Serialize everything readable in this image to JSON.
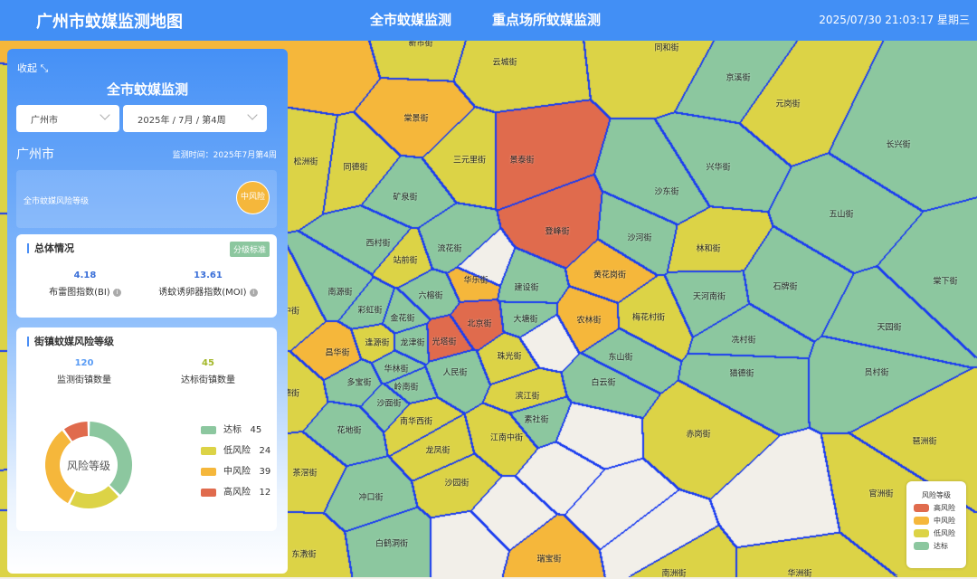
{
  "header": {
    "title": "广州市蚊媒监测地图",
    "nav": [
      "全市蚊媒监测",
      "重点场所蚊媒监测"
    ],
    "datetime": "2025/07/30 21:03:17 星期三"
  },
  "colors": {
    "达标": "#8cc79f",
    "低风险": "#dcd346",
    "中风险": "#f5b73b",
    "高风险": "#e06b4d",
    "base": "#f2efe9",
    "border": "#1b3df0",
    "header": "#428ff5"
  },
  "panel": {
    "collapse": "收起",
    "title": "全市蚊媒监测",
    "region_select": "广州市",
    "period_select": "2025年 / 7月 / 第4周",
    "city": "广州市",
    "monitor_time": "监测时间：2025年7月第4周",
    "city_risk_label": "全市蚊媒风险等级",
    "city_risk": "中风险",
    "overall": {
      "title": "总体情况",
      "standard_button": "分级标准",
      "bi_value": "4.18",
      "bi_label": "布雷图指数(BI)",
      "moi_value": "13.61",
      "moi_label": "诱蚊诱卵器指数(MOI)"
    },
    "streets": {
      "title": "街镇蚊媒风险等级",
      "monitored_value": "120",
      "monitored_label": "监测街镇数量",
      "ok_value": "45",
      "ok_label": "达标街镇数量",
      "donut_center": "风险等级",
      "levels": [
        {
          "name": "达标",
          "value": 45,
          "color": "#8cc79f"
        },
        {
          "name": "低风险",
          "value": 24,
          "color": "#dcd346"
        },
        {
          "name": "中风险",
          "value": 39,
          "color": "#f5b73b"
        },
        {
          "name": "高风险",
          "value": 12,
          "color": "#e06b4d"
        }
      ]
    }
  },
  "map_legend": {
    "title": "风险等级",
    "items": [
      "高风险",
      "中风险",
      "低风险",
      "达标"
    ]
  },
  "districts": [
    {
      "name": "新市街",
      "risk": "低风险"
    },
    {
      "name": "云城街",
      "risk": "低风险"
    },
    {
      "name": "同和街",
      "risk": "低风险"
    },
    {
      "name": "京溪街",
      "risk": "达标"
    },
    {
      "name": "元岗街",
      "risk": "低风险"
    },
    {
      "name": "长兴街",
      "risk": "达标"
    },
    {
      "name": "棠景街",
      "risk": "中风险"
    },
    {
      "name": "松洲街",
      "risk": "低风险"
    },
    {
      "name": "同德街",
      "risk": "低风险"
    },
    {
      "name": "三元里街",
      "risk": "低风险"
    },
    {
      "name": "景泰街",
      "risk": "高风险"
    },
    {
      "name": "兴华街",
      "risk": "达标"
    },
    {
      "name": "矿泉街",
      "risk": "达标"
    },
    {
      "name": "沙东街",
      "risk": "达标"
    },
    {
      "name": "五山街",
      "risk": "达标"
    },
    {
      "name": "登峰街",
      "risk": "高风险"
    },
    {
      "name": "沙河街",
      "risk": "达标"
    },
    {
      "name": "林和街",
      "risk": "低风险"
    },
    {
      "name": "西村街",
      "risk": "达标"
    },
    {
      "name": "站前街",
      "risk": "低风险"
    },
    {
      "name": "流花街",
      "risk": "达标"
    },
    {
      "name": "华乐街",
      "risk": "中风险"
    },
    {
      "name": "黄花岗街",
      "risk": "中风险"
    },
    {
      "name": "建设街",
      "risk": "达标"
    },
    {
      "name": "天河南街",
      "risk": "达标"
    },
    {
      "name": "石牌街",
      "risk": "达标"
    },
    {
      "name": "棠下街",
      "risk": "达标"
    },
    {
      "name": "南源街",
      "risk": "达标"
    },
    {
      "name": "六榕街",
      "risk": "达标"
    },
    {
      "name": "彩虹街",
      "risk": "达标"
    },
    {
      "name": "金花街",
      "risk": "达标"
    },
    {
      "name": "北京街",
      "risk": "高风险"
    },
    {
      "name": "大塘街",
      "risk": "达标"
    },
    {
      "name": "农林街",
      "risk": "中风险"
    },
    {
      "name": "梅花村街",
      "risk": "低风险"
    },
    {
      "name": "天园街",
      "risk": "达标"
    },
    {
      "name": "中街",
      "risk": "低风险"
    },
    {
      "name": "昌华街",
      "risk": "中风险"
    },
    {
      "name": "逢源街",
      "risk": "低风险"
    },
    {
      "name": "龙津街",
      "risk": "达标"
    },
    {
      "name": "光塔街",
      "risk": "高风险"
    },
    {
      "name": "冼村街",
      "risk": "达标"
    },
    {
      "name": "东山街",
      "risk": "达标"
    },
    {
      "name": "珠光街",
      "risk": "低风险"
    },
    {
      "name": "华林街",
      "risk": "达标"
    },
    {
      "name": "人民街",
      "risk": "达标"
    },
    {
      "name": "猎德街",
      "risk": "达标"
    },
    {
      "name": "员村街",
      "risk": "达标"
    },
    {
      "name": "多宝街",
      "risk": "达标"
    },
    {
      "name": "岭南街",
      "risk": "达标"
    },
    {
      "name": "白云街",
      "risk": "达标"
    },
    {
      "name": "沙面街",
      "risk": "达标"
    },
    {
      "name": "滨江街",
      "risk": "低风险"
    },
    {
      "name": "南华西街",
      "risk": "低风险"
    },
    {
      "name": "素社街",
      "risk": "达标"
    },
    {
      "name": "赤岗街",
      "risk": "低风险"
    },
    {
      "name": "琶洲街",
      "risk": "低风险"
    },
    {
      "name": "花地街",
      "risk": "达标"
    },
    {
      "name": "江南中街",
      "risk": "低风险"
    },
    {
      "name": "龙凤街",
      "risk": "低风险"
    },
    {
      "name": "茶滘街",
      "risk": "低风险"
    },
    {
      "name": "沙园街",
      "risk": "低风险"
    },
    {
      "name": "官洲街",
      "risk": "低风险"
    },
    {
      "name": "冲口街",
      "risk": "达标"
    },
    {
      "name": "白鹤洞街",
      "risk": "达标"
    },
    {
      "name": "瑞宝街",
      "risk": "中风险"
    },
    {
      "name": "东漖街",
      "risk": "低风险"
    },
    {
      "name": "南洲街",
      "risk": "低风险"
    },
    {
      "name": "华洲街",
      "risk": "低风险"
    },
    {
      "name": "德街",
      "risk": "低风险"
    }
  ]
}
